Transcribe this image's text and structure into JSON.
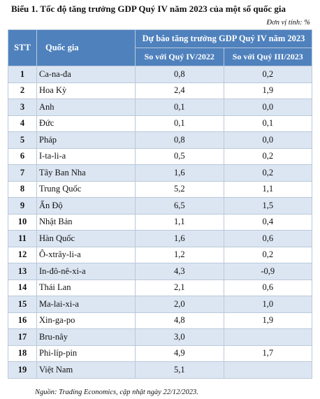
{
  "title": "Biểu 1. Tốc độ tăng trưởng GDP Quý IV năm 2023 của một số quốc gia",
  "unit": "Đơn vị tính: %",
  "source": "Nguồn: Trading Economics, cập nhật ngày 22/12/2023.",
  "header": {
    "stt": "STT",
    "country": "Quốc gia",
    "group": "Dự báo tăng trưởng GDP Quý IV năm 2023",
    "col1": "So với Quý IV/2022",
    "col2": "So với Quý III/2023"
  },
  "chart_data": {
    "type": "table",
    "title": "Biểu 1. Tốc độ tăng trưởng GDP Quý IV năm 2023 của một số quốc gia",
    "columns": [
      "STT",
      "Quốc gia",
      "So với Quý IV/2022",
      "So với Quý III/2023"
    ],
    "rows": [
      {
        "stt": "1",
        "country": "Ca-na-đa",
        "yoy": "0,8",
        "qoq": "0,2"
      },
      {
        "stt": "2",
        "country": "Hoa Kỳ",
        "yoy": "2,4",
        "qoq": "1,9"
      },
      {
        "stt": "3",
        "country": "Anh",
        "yoy": "0,1",
        "qoq": "0,0"
      },
      {
        "stt": "4",
        "country": "Đức",
        "yoy": "0,1",
        "qoq": "0,1"
      },
      {
        "stt": "5",
        "country": "Pháp",
        "yoy": "0,8",
        "qoq": "0,0"
      },
      {
        "stt": "6",
        "country": "I-ta-li-a",
        "yoy": "0,5",
        "qoq": "0,2"
      },
      {
        "stt": "7",
        "country": "Tây Ban Nha",
        "yoy": "1,6",
        "qoq": "0,2"
      },
      {
        "stt": "8",
        "country": "Trung Quốc",
        "yoy": "5,2",
        "qoq": "1,1"
      },
      {
        "stt": "9",
        "country": "Ấn Độ",
        "yoy": "6,5",
        "qoq": "1,5"
      },
      {
        "stt": "10",
        "country": "Nhật Bản",
        "yoy": "1,1",
        "qoq": "0,4"
      },
      {
        "stt": "11",
        "country": "Hàn Quốc",
        "yoy": "1,6",
        "qoq": "0,6"
      },
      {
        "stt": "12",
        "country": "Ô-xtrây-li-a",
        "yoy": "1,2",
        "qoq": "0,2"
      },
      {
        "stt": "13",
        "country": "In-đô-nê-xi-a",
        "yoy": "4,3",
        "qoq": "-0,9"
      },
      {
        "stt": "14",
        "country": "Thái Lan",
        "yoy": "2,1",
        "qoq": "0,6"
      },
      {
        "stt": "15",
        "country": "Ma-lai-xi-a",
        "yoy": "2,0",
        "qoq": "1,0"
      },
      {
        "stt": "16",
        "country": "Xin-ga-po",
        "yoy": "4,8",
        "qoq": "1,9"
      },
      {
        "stt": "17",
        "country": "Bru-nây",
        "yoy": "3,0",
        "qoq": ""
      },
      {
        "stt": "18",
        "country": "Phi-líp-pin",
        "yoy": "4,9",
        "qoq": "1,7"
      },
      {
        "stt": "19",
        "country": "Việt Nam",
        "yoy": "5,1",
        "qoq": ""
      }
    ]
  }
}
